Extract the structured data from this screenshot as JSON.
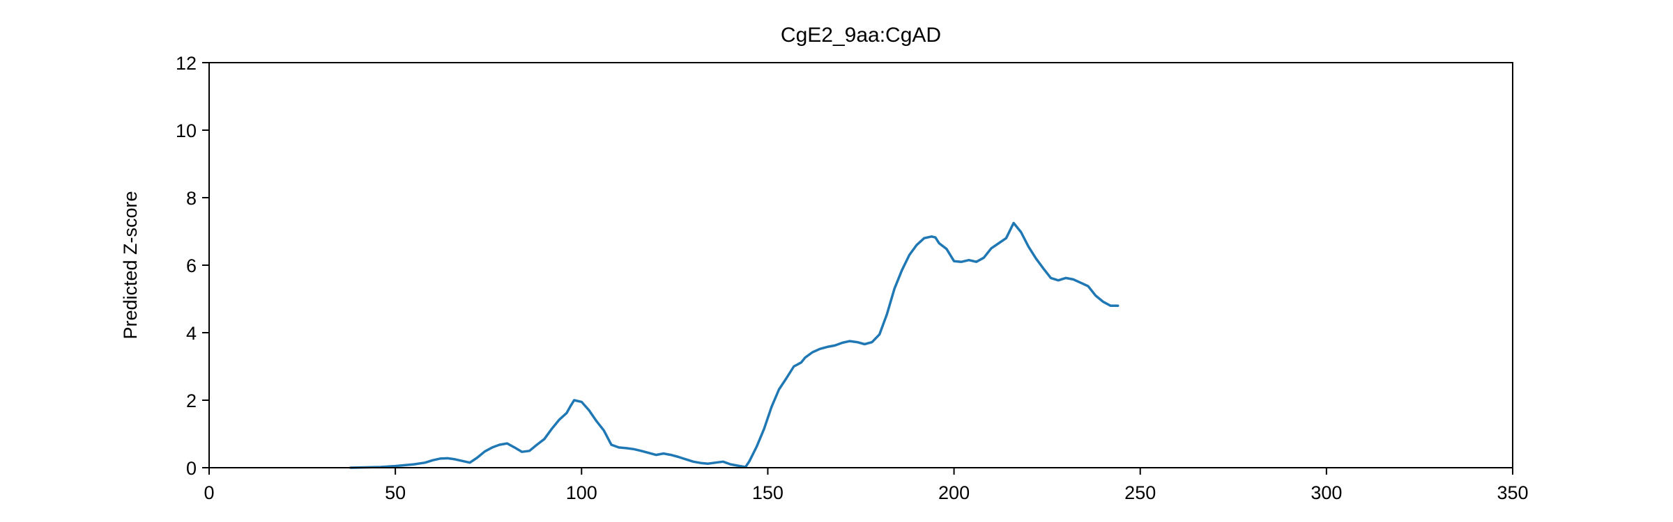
{
  "chart_data": {
    "type": "line",
    "title": "CgE2_9aa:CgAD",
    "xlabel": "",
    "ylabel": "Predicted Z-score",
    "xlim": [
      0,
      350
    ],
    "ylim": [
      0,
      12
    ],
    "x_ticks": [
      0,
      50,
      100,
      150,
      200,
      250,
      300,
      350
    ],
    "y_ticks": [
      0,
      2,
      4,
      6,
      8,
      10,
      12
    ],
    "grid": false,
    "legend": "none",
    "series": [
      {
        "color": "#1f77b4",
        "x": [
          38,
          42,
          46,
          50,
          52,
          55,
          58,
          60,
          62,
          64,
          66,
          68,
          70,
          72,
          74,
          76,
          78,
          80,
          82,
          84,
          86,
          88,
          90,
          92,
          94,
          96,
          97,
          98,
          100,
          102,
          104,
          106,
          108,
          110,
          112,
          114,
          116,
          118,
          120,
          122,
          124,
          126,
          128,
          130,
          132,
          134,
          136,
          138,
          140,
          142,
          144,
          145,
          147,
          149,
          151,
          153,
          155,
          157,
          159,
          160,
          162,
          164,
          166,
          168,
          170,
          172,
          174,
          176,
          178,
          180,
          182,
          184,
          186,
          188,
          190,
          192,
          194,
          195,
          196,
          198,
          200,
          202,
          204,
          206,
          208,
          210,
          212,
          214,
          216,
          218,
          220,
          222,
          224,
          226,
          228,
          230,
          232,
          234,
          236,
          238,
          240,
          242,
          244
        ],
        "y": [
          0.0,
          0.01,
          0.02,
          0.05,
          0.07,
          0.1,
          0.15,
          0.22,
          0.27,
          0.28,
          0.25,
          0.2,
          0.15,
          0.3,
          0.48,
          0.6,
          0.68,
          0.72,
          0.6,
          0.47,
          0.5,
          0.68,
          0.85,
          1.15,
          1.42,
          1.62,
          1.82,
          2.0,
          1.95,
          1.7,
          1.38,
          1.1,
          0.68,
          0.6,
          0.58,
          0.55,
          0.5,
          0.44,
          0.38,
          0.42,
          0.38,
          0.32,
          0.25,
          0.18,
          0.14,
          0.12,
          0.15,
          0.18,
          0.1,
          0.06,
          0.02,
          0.18,
          0.62,
          1.15,
          1.8,
          2.32,
          2.65,
          3.0,
          3.12,
          3.26,
          3.42,
          3.52,
          3.58,
          3.62,
          3.7,
          3.75,
          3.72,
          3.66,
          3.72,
          3.95,
          4.55,
          5.3,
          5.85,
          6.3,
          6.6,
          6.8,
          6.85,
          6.82,
          6.65,
          6.48,
          6.12,
          6.1,
          6.15,
          6.1,
          6.22,
          6.5,
          6.65,
          6.8,
          7.25,
          6.98,
          6.55,
          6.2,
          5.9,
          5.62,
          5.55,
          5.62,
          5.58,
          5.48,
          5.38,
          5.1,
          4.92,
          4.8,
          4.8
        ]
      }
    ]
  }
}
